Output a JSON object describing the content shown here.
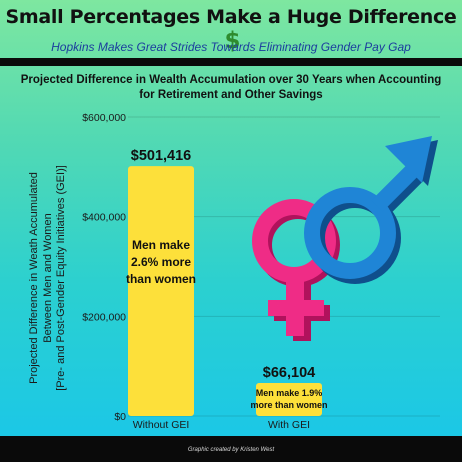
{
  "header": {
    "title": "Small Percentages Make a Huge Difference",
    "subtitle": "Hopkins Makes Great Strides Towards Eliminating Gender Pay Gap"
  },
  "icons": {
    "title_icon": "dollar-sign-icon",
    "illustration": "gender-symbols-icon"
  },
  "colors": {
    "bar": "#fde03a",
    "female_symbol": "#ef2c86",
    "male_symbol": "#1f85d6",
    "title_dollar": "#2e8b2e",
    "subtitle": "#1c3d9e"
  },
  "chart_data": {
    "type": "bar",
    "title": "Projected Difference in Wealth Accumulation over 30 Years when Accounting for Retirement and Other Savings",
    "ylabel": [
      "Projected Difference in Weath Accumulated",
      "Between Men and Women",
      "[Pre- and Post-Gender Equity Initiatives (GEI)]"
    ],
    "categories": [
      "Without GEI",
      "With GEI"
    ],
    "values": [
      501416,
      66104
    ],
    "value_labels": [
      "$501,416",
      "$66,104"
    ],
    "annotations": [
      "Men make 2.6% more than women",
      "Men make 1.9% more than women"
    ],
    "ylim": [
      0,
      600000
    ],
    "yticks": [
      0,
      200000,
      400000,
      600000
    ],
    "ytick_labels": [
      "$0",
      "$200,000",
      "$400,000",
      "$600,000"
    ],
    "grid": true
  },
  "footer": {
    "credit": "Graphic created by Kristen West"
  }
}
